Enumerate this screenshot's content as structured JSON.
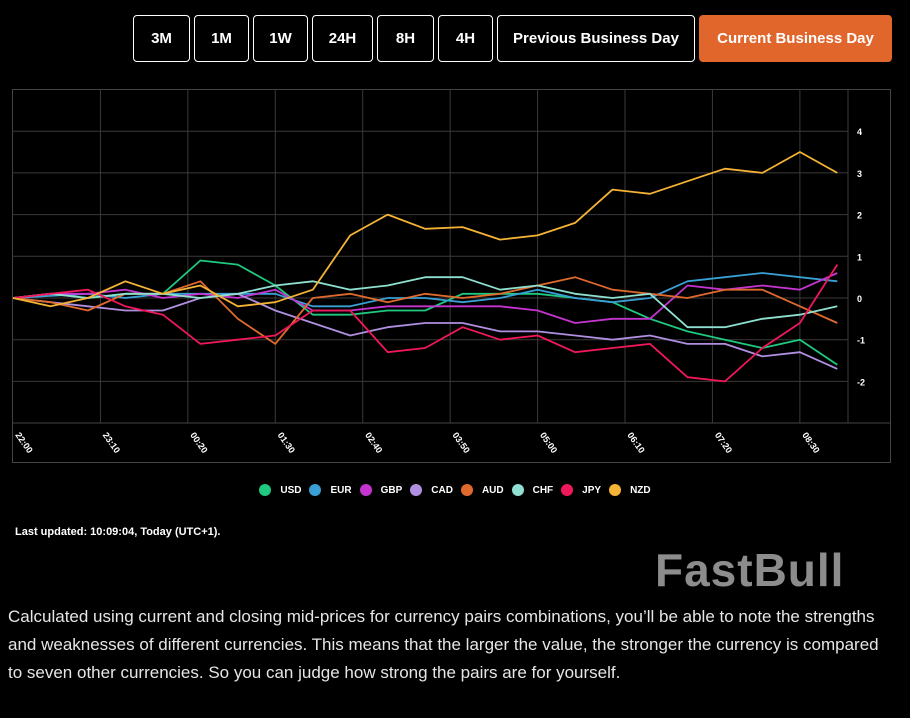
{
  "range_buttons": [
    {
      "label": "3M",
      "active": false
    },
    {
      "label": "1M",
      "active": false
    },
    {
      "label": "1W",
      "active": false
    },
    {
      "label": "24H",
      "active": false
    },
    {
      "label": "8H",
      "active": false
    },
    {
      "label": "4H",
      "active": false
    },
    {
      "label": "Previous Business Day",
      "active": false
    },
    {
      "label": "Current Business Day",
      "active": true
    }
  ],
  "accent_color": "#e0662c",
  "chart_data": {
    "type": "line",
    "x_tick_labels": [
      "22:00",
      "23:10",
      "00:20",
      "01:30",
      "02:40",
      "03:50",
      "05:00",
      "06:10",
      "07:20",
      "08:30"
    ],
    "y_tick_labels": [
      "4",
      "3",
      "2",
      "1",
      "0",
      "-1",
      "-2"
    ],
    "ylim": [
      -3,
      5
    ],
    "grid": true,
    "legend_placement": "bottom",
    "x": [
      "22:00",
      "22:30",
      "23:00",
      "23:30",
      "00:00",
      "00:30",
      "01:00",
      "01:30",
      "02:00",
      "02:30",
      "03:00",
      "03:30",
      "04:00",
      "04:30",
      "05:00",
      "05:30",
      "06:00",
      "06:30",
      "07:00",
      "07:30",
      "08:00",
      "08:30",
      "09:00"
    ],
    "series": [
      {
        "name": "USD",
        "color": "#1fc97f",
        "values": [
          0,
          0.1,
          0,
          0.1,
          0.1,
          0.9,
          0.8,
          0.3,
          -0.4,
          -0.4,
          -0.3,
          -0.3,
          0.1,
          0.1,
          0.1,
          0,
          -0.1,
          -0.5,
          -0.8,
          -1.0,
          -1.2,
          -1.0,
          -1.6
        ]
      },
      {
        "name": "EUR",
        "color": "#3a9fd4",
        "values": [
          0,
          0.05,
          0.1,
          0,
          0.1,
          0.1,
          0.1,
          0.1,
          -0.2,
          -0.2,
          0,
          0,
          -0.1,
          0,
          0.2,
          0,
          -0.1,
          0,
          0.4,
          0.5,
          0.6,
          0.5,
          0.4
        ]
      },
      {
        "name": "GBP",
        "color": "#c435d0",
        "values": [
          0,
          0.1,
          0.1,
          0.2,
          0,
          0.1,
          0,
          0.2,
          -0.3,
          -0.3,
          -0.2,
          -0.2,
          -0.2,
          -0.2,
          -0.3,
          -0.6,
          -0.5,
          -0.5,
          0.3,
          0.2,
          0.3,
          0.2,
          0.6
        ]
      },
      {
        "name": "CAD",
        "color": "#b08fe0",
        "values": [
          0,
          -0.1,
          -0.2,
          -0.3,
          -0.3,
          0,
          0.1,
          -0.3,
          -0.6,
          -0.9,
          -0.7,
          -0.6,
          -0.6,
          -0.8,
          -0.8,
          -0.9,
          -1.0,
          -0.9,
          -1.1,
          -1.1,
          -1.4,
          -1.3,
          -1.7
        ]
      },
      {
        "name": "AUD",
        "color": "#e06a2e",
        "values": [
          0,
          -0.1,
          -0.3,
          0.1,
          0.1,
          0.4,
          -0.5,
          -1.1,
          0,
          0.1,
          -0.1,
          0.1,
          0,
          0.1,
          0.3,
          0.5,
          0.2,
          0.1,
          0,
          0.2,
          0.2,
          -0.2,
          -0.6
        ]
      },
      {
        "name": "CHF",
        "color": "#8fe0d0",
        "values": [
          0,
          0.1,
          0,
          0.1,
          0.1,
          0,
          0.1,
          0.3,
          0.4,
          0.2,
          0.3,
          0.5,
          0.5,
          0.2,
          0.3,
          0.1,
          0,
          0.1,
          -0.7,
          -0.7,
          -0.5,
          -0.4,
          -0.2
        ]
      },
      {
        "name": "JPY",
        "color": "#f0185a",
        "values": [
          0,
          0.1,
          0.2,
          -0.2,
          -0.4,
          -1.1,
          -1.0,
          -0.9,
          -0.3,
          -0.3,
          -1.3,
          -1.2,
          -0.7,
          -1.0,
          -0.9,
          -1.3,
          -1.2,
          -1.1,
          -1.9,
          -2.0,
          -1.2,
          -0.6,
          0.8
        ]
      },
      {
        "name": "NZD",
        "color": "#f5b335",
        "values": [
          0,
          -0.2,
          0,
          0.4,
          0.1,
          0.3,
          -0.2,
          -0.1,
          0.2,
          1.5,
          2.0,
          1.66,
          1.7,
          1.4,
          1.5,
          1.8,
          2.6,
          2.5,
          2.8,
          3.1,
          3.0,
          3.5,
          3.0
        ]
      }
    ]
  },
  "last_updated": "Last updated: 10:09:04, Today (UTC+1).",
  "description": "Calculated using current and closing mid-prices for currency pairs combinations, you’ll be able to note the strengths and weaknesses of different currencies. This means that the larger the value, the stronger the currency is compared to seven other currencies. So you can judge how strong the pairs are for yourself.",
  "watermark": "FastBull"
}
